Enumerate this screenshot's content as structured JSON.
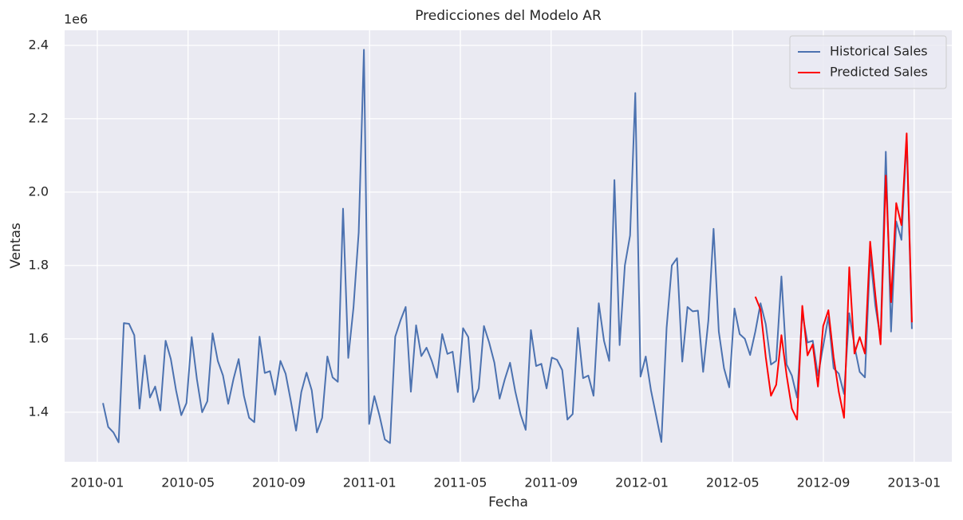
{
  "chart_data": {
    "type": "line",
    "title": "Predicciones del Modelo AR",
    "xlabel": "Fecha",
    "ylabel": "Ventas",
    "y_offset_label": "1e6",
    "x": [
      0.25,
      0.48,
      0.71,
      0.94,
      1.17,
      1.4,
      1.63,
      1.86,
      2.09,
      2.32,
      2.55,
      2.78,
      3.01,
      3.24,
      3.47,
      3.7,
      3.93,
      4.16,
      4.39,
      4.62,
      4.85,
      5.08,
      5.31,
      5.54,
      5.77,
      6,
      6.23,
      6.46,
      6.69,
      6.92,
      7.15,
      7.38,
      7.61,
      7.84,
      8.07,
      8.3,
      8.53,
      8.76,
      8.99,
      9.22,
      9.45,
      9.68,
      9.91,
      10.14,
      10.37,
      10.6,
      10.83,
      11.06,
      11.29,
      11.52,
      11.75,
      11.98,
      12.21,
      12.44,
      12.67,
      12.9,
      13.13,
      13.36,
      13.59,
      13.82,
      14.05,
      14.28,
      14.51,
      14.74,
      14.97,
      15.2,
      15.43,
      15.66,
      15.89,
      16.12,
      16.35,
      16.58,
      16.81,
      17.04,
      17.27,
      17.5,
      17.73,
      17.96,
      18.19,
      18.42,
      18.65,
      18.88,
      19.11,
      19.34,
      19.57,
      19.8,
      20.03,
      20.26,
      20.49,
      20.72,
      20.95,
      21.18,
      21.41,
      21.64,
      21.87,
      22.1,
      22.33,
      22.56,
      22.79,
      23.02,
      23.25,
      23.48,
      23.71,
      23.94,
      24.17,
      24.4,
      24.63,
      24.86,
      25.09,
      25.32,
      25.55,
      25.78,
      26.01,
      26.24,
      26.47,
      26.7,
      26.93,
      27.16,
      27.39,
      27.62,
      27.85,
      28.08,
      28.31,
      28.54,
      28.77,
      29,
      29.23,
      29.46,
      29.69,
      29.92,
      30.15,
      30.38,
      30.61,
      30.84,
      31.07,
      31.3,
      31.53,
      31.76,
      31.99,
      32.22,
      32.45,
      32.68,
      32.91,
      33.14,
      33.37,
      33.6,
      33.83,
      34.06,
      34.29,
      34.52,
      34.75,
      34.98,
      35.21,
      35.44,
      35.67,
      35.9
    ],
    "series": [
      {
        "name": "Historical Sales",
        "color": "#4c72b0",
        "values": [
          1.425,
          1.36,
          1.345,
          1.318,
          1.643,
          1.641,
          1.61,
          1.41,
          1.555,
          1.44,
          1.47,
          1.405,
          1.595,
          1.545,
          1.46,
          1.392,
          1.425,
          1.605,
          1.49,
          1.4,
          1.43,
          1.615,
          1.54,
          1.5,
          1.423,
          1.49,
          1.545,
          1.445,
          1.385,
          1.373,
          1.606,
          1.507,
          1.512,
          1.448,
          1.54,
          1.505,
          1.43,
          1.35,
          1.455,
          1.508,
          1.46,
          1.345,
          1.385,
          1.552,
          1.495,
          1.483,
          1.955,
          1.548,
          1.685,
          1.89,
          2.388,
          1.368,
          1.444,
          1.39,
          1.326,
          1.316,
          1.606,
          1.65,
          1.687,
          1.456,
          1.637,
          1.553,
          1.576,
          1.54,
          1.494,
          1.613,
          1.559,
          1.565,
          1.455,
          1.629,
          1.605,
          1.428,
          1.465,
          1.635,
          1.59,
          1.535,
          1.437,
          1.49,
          1.535,
          1.457,
          1.395,
          1.352,
          1.624,
          1.526,
          1.532,
          1.465,
          1.549,
          1.543,
          1.515,
          1.38,
          1.395,
          1.63,
          1.493,
          1.5,
          1.445,
          1.697,
          1.595,
          1.54,
          2.033,
          1.583,
          1.8,
          1.882,
          2.27,
          1.497,
          1.552,
          1.46,
          1.39,
          1.319,
          1.63,
          1.8,
          1.82,
          1.538,
          1.687,
          1.675,
          1.677,
          1.51,
          1.65,
          1.9,
          1.62,
          1.52,
          1.468,
          1.683,
          1.613,
          1.6,
          1.556,
          1.62,
          1.697,
          1.64,
          1.53,
          1.54,
          1.77,
          1.53,
          1.5,
          1.44,
          1.67,
          1.59,
          1.595,
          1.5,
          1.58,
          1.66,
          1.52,
          1.505,
          1.45,
          1.67,
          1.58,
          1.51,
          1.495,
          1.83,
          1.69,
          1.6,
          2.11,
          1.62,
          1.92,
          1.87,
          2.15,
          1.627
        ]
      },
      {
        "name": "Predicted Sales",
        "color": "#ff0000",
        "values": [
          null,
          null,
          null,
          null,
          null,
          null,
          null,
          null,
          null,
          null,
          null,
          null,
          null,
          null,
          null,
          null,
          null,
          null,
          null,
          null,
          null,
          null,
          null,
          null,
          null,
          null,
          null,
          null,
          null,
          null,
          null,
          null,
          null,
          null,
          null,
          null,
          null,
          null,
          null,
          null,
          null,
          null,
          null,
          null,
          null,
          null,
          null,
          null,
          null,
          null,
          null,
          null,
          null,
          null,
          null,
          null,
          null,
          null,
          null,
          null,
          null,
          null,
          null,
          null,
          null,
          null,
          null,
          null,
          null,
          null,
          null,
          null,
          null,
          null,
          null,
          null,
          null,
          null,
          null,
          null,
          null,
          null,
          null,
          null,
          null,
          null,
          null,
          null,
          null,
          null,
          null,
          null,
          null,
          null,
          null,
          null,
          null,
          null,
          null,
          null,
          null,
          null,
          null,
          null,
          null,
          null,
          null,
          null,
          null,
          null,
          null,
          null,
          null,
          null,
          null,
          null,
          null,
          null,
          null,
          null,
          null,
          null,
          null,
          null,
          null,
          1.715,
          1.68,
          1.55,
          1.445,
          1.475,
          1.61,
          1.5,
          1.41,
          1.38,
          1.69,
          1.555,
          1.585,
          1.47,
          1.635,
          1.678,
          1.55,
          1.455,
          1.385,
          1.795,
          1.56,
          1.605,
          1.56,
          1.865,
          1.72,
          1.585,
          2.045,
          1.7,
          1.97,
          1.91,
          2.16,
          1.645
        ]
      }
    ],
    "xlim": [
      -1.44,
      37.66
    ],
    "xticks": [
      {
        "value": 0,
        "label": "2010-01"
      },
      {
        "value": 4,
        "label": "2010-05"
      },
      {
        "value": 8,
        "label": "2010-09"
      },
      {
        "value": 12,
        "label": "2011-01"
      },
      {
        "value": 16,
        "label": "2011-05"
      },
      {
        "value": 20,
        "label": "2011-09"
      },
      {
        "value": 24,
        "label": "2012-01"
      },
      {
        "value": 28,
        "label": "2012-05"
      },
      {
        "value": 32,
        "label": "2012-09"
      },
      {
        "value": 36,
        "label": "2013-01"
      }
    ],
    "ylim": [
      1.265,
      2.441
    ],
    "yticks": [
      {
        "value": 1.4,
        "label": "1.4"
      },
      {
        "value": 1.6,
        "label": "1.6"
      },
      {
        "value": 1.8,
        "label": "1.8"
      },
      {
        "value": 2.0,
        "label": "2.0"
      },
      {
        "value": 2.2,
        "label": "2.2"
      },
      {
        "value": 2.4,
        "label": "2.4"
      }
    ],
    "grid": true,
    "legend": "upper right"
  }
}
